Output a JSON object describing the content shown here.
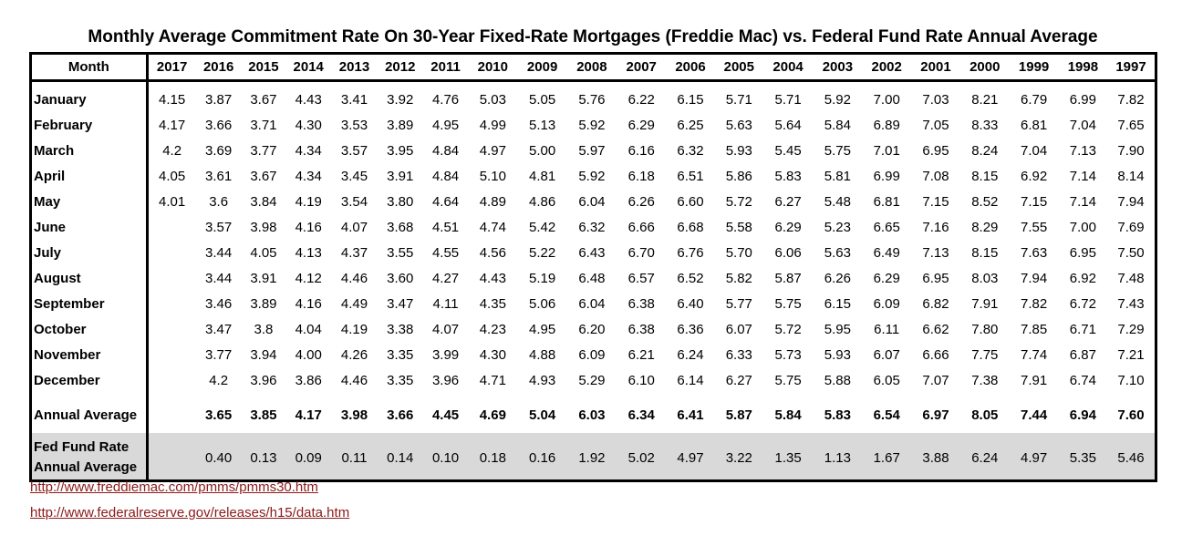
{
  "title": "Monthly Average Commitment Rate On 30-Year Fixed-Rate Mortgages (Freddie Mac) vs. Federal Fund Rate Annual Average",
  "table": {
    "month_header": "Month",
    "years": [
      "2017",
      "2016",
      "2015",
      "2014",
      "2013",
      "2012",
      "2011",
      "2010",
      "2009",
      "2008",
      "2007",
      "2006",
      "2005",
      "2004",
      "2003",
      "2002",
      "2001",
      "2000",
      "1999",
      "1998",
      "1997"
    ],
    "rows": [
      {
        "label": "January",
        "values": [
          "4.15",
          "3.87",
          "3.67",
          "4.43",
          "3.41",
          "3.92",
          "4.76",
          "5.03",
          "5.05",
          "5.76",
          "6.22",
          "6.15",
          "5.71",
          "5.71",
          "5.92",
          "7.00",
          "7.03",
          "8.21",
          "6.79",
          "6.99",
          "7.82"
        ]
      },
      {
        "label": "February",
        "values": [
          "4.17",
          "3.66",
          "3.71",
          "4.30",
          "3.53",
          "3.89",
          "4.95",
          "4.99",
          "5.13",
          "5.92",
          "6.29",
          "6.25",
          "5.63",
          "5.64",
          "5.84",
          "6.89",
          "7.05",
          "8.33",
          "6.81",
          "7.04",
          "7.65"
        ]
      },
      {
        "label": "March",
        "values": [
          "4.2",
          "3.69",
          "3.77",
          "4.34",
          "3.57",
          "3.95",
          "4.84",
          "4.97",
          "5.00",
          "5.97",
          "6.16",
          "6.32",
          "5.93",
          "5.45",
          "5.75",
          "7.01",
          "6.95",
          "8.24",
          "7.04",
          "7.13",
          "7.90"
        ]
      },
      {
        "label": "April",
        "values": [
          "4.05",
          "3.61",
          "3.67",
          "4.34",
          "3.45",
          "3.91",
          "4.84",
          "5.10",
          "4.81",
          "5.92",
          "6.18",
          "6.51",
          "5.86",
          "5.83",
          "5.81",
          "6.99",
          "7.08",
          "8.15",
          "6.92",
          "7.14",
          "8.14"
        ]
      },
      {
        "label": "May",
        "values": [
          "4.01",
          "3.6",
          "3.84",
          "4.19",
          "3.54",
          "3.80",
          "4.64",
          "4.89",
          "4.86",
          "6.04",
          "6.26",
          "6.60",
          "5.72",
          "6.27",
          "5.48",
          "6.81",
          "7.15",
          "8.52",
          "7.15",
          "7.14",
          "7.94"
        ]
      },
      {
        "label": "June",
        "values": [
          "",
          "3.57",
          "3.98",
          "4.16",
          "4.07",
          "3.68",
          "4.51",
          "4.74",
          "5.42",
          "6.32",
          "6.66",
          "6.68",
          "5.58",
          "6.29",
          "5.23",
          "6.65",
          "7.16",
          "8.29",
          "7.55",
          "7.00",
          "7.69"
        ]
      },
      {
        "label": "July",
        "values": [
          "",
          "3.44",
          "4.05",
          "4.13",
          "4.37",
          "3.55",
          "4.55",
          "4.56",
          "5.22",
          "6.43",
          "6.70",
          "6.76",
          "5.70",
          "6.06",
          "5.63",
          "6.49",
          "7.13",
          "8.15",
          "7.63",
          "6.95",
          "7.50"
        ]
      },
      {
        "label": "August",
        "values": [
          "",
          "3.44",
          "3.91",
          "4.12",
          "4.46",
          "3.60",
          "4.27",
          "4.43",
          "5.19",
          "6.48",
          "6.57",
          "6.52",
          "5.82",
          "5.87",
          "6.26",
          "6.29",
          "6.95",
          "8.03",
          "7.94",
          "6.92",
          "7.48"
        ]
      },
      {
        "label": "September",
        "values": [
          "",
          "3.46",
          "3.89",
          "4.16",
          "4.49",
          "3.47",
          "4.11",
          "4.35",
          "5.06",
          "6.04",
          "6.38",
          "6.40",
          "5.77",
          "5.75",
          "6.15",
          "6.09",
          "6.82",
          "7.91",
          "7.82",
          "6.72",
          "7.43"
        ]
      },
      {
        "label": "October",
        "values": [
          "",
          "3.47",
          "3.8",
          "4.04",
          "4.19",
          "3.38",
          "4.07",
          "4.23",
          "4.95",
          "6.20",
          "6.38",
          "6.36",
          "6.07",
          "5.72",
          "5.95",
          "6.11",
          "6.62",
          "7.80",
          "7.85",
          "6.71",
          "7.29"
        ]
      },
      {
        "label": "November",
        "values": [
          "",
          "3.77",
          "3.94",
          "4.00",
          "4.26",
          "3.35",
          "3.99",
          "4.30",
          "4.88",
          "6.09",
          "6.21",
          "6.24",
          "6.33",
          "5.73",
          "5.93",
          "6.07",
          "6.66",
          "7.75",
          "7.74",
          "6.87",
          "7.21"
        ]
      },
      {
        "label": "December",
        "values": [
          "",
          "4.2",
          "3.96",
          "3.86",
          "4.46",
          "3.35",
          "3.96",
          "4.71",
          "4.93",
          "5.29",
          "6.10",
          "6.14",
          "6.27",
          "5.75",
          "5.88",
          "6.05",
          "7.07",
          "7.38",
          "7.91",
          "6.74",
          "7.10"
        ]
      }
    ],
    "annual": {
      "label": "Annual Average",
      "values": [
        "",
        "3.65",
        "3.85",
        "4.17",
        "3.98",
        "3.66",
        "4.45",
        "4.69",
        "5.04",
        "6.03",
        "6.34",
        "6.41",
        "5.87",
        "5.84",
        "5.83",
        "6.54",
        "6.97",
        "8.05",
        "7.44",
        "6.94",
        "7.60"
      ]
    },
    "fed": {
      "label_line1": "Fed Fund Rate",
      "label_line2": "Annual Average",
      "values": [
        "",
        "0.40",
        "0.13",
        "0.09",
        "0.11",
        "0.14",
        "0.10",
        "0.18",
        "0.16",
        "1.92",
        "5.02",
        "4.97",
        "3.22",
        "1.35",
        "1.13",
        "1.67",
        "3.88",
        "6.24",
        "4.97",
        "5.35",
        "5.46"
      ]
    }
  },
  "links": [
    "http://www.freddiemac.com/pmms/pmms30.htm",
    "http://www.federalreserve.gov/releases/h15/data.htm"
  ],
  "colors": {
    "fed_row_bg": "#d9d9d9",
    "link": "#8b1a1a"
  }
}
